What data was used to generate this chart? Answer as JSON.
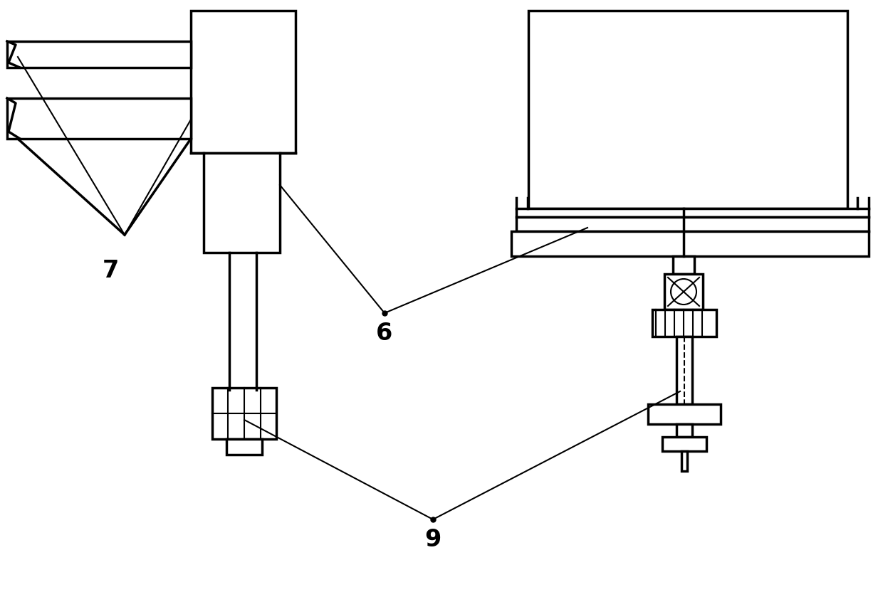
{
  "bg_color": "#ffffff",
  "lc": "#000000",
  "lw": 2.5,
  "lw_t": 1.5,
  "label_7": "7",
  "label_6": "6",
  "label_9": "9",
  "fw": 12.4,
  "fh": 8.32,
  "dpi": 100
}
